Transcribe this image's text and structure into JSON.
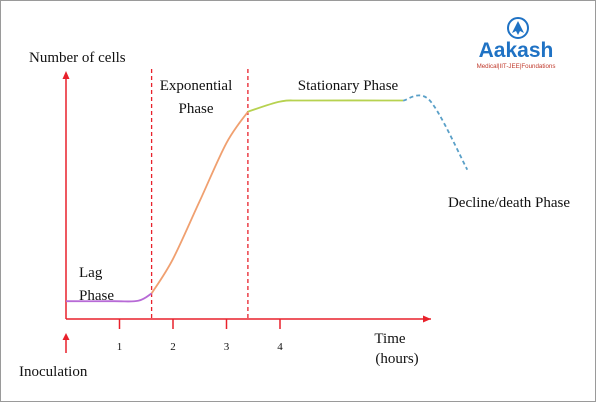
{
  "chart_data": {
    "type": "line",
    "ylabel": "Number of cells",
    "xlabel_lines": [
      "Time",
      "(hours)"
    ],
    "x_ticks": [
      "1",
      "2",
      "3",
      "4"
    ],
    "x_tick_values": [
      1,
      2,
      3,
      4
    ],
    "xlim": [
      0,
      6.8
    ],
    "ylim": [
      0,
      10
    ],
    "phase_boundaries": [
      1.6,
      3.4
    ],
    "inoculation_label": "Inoculation",
    "phases": [
      {
        "name": "Lag Phase",
        "lines": [
          "Lag",
          "Phase"
        ],
        "color": "#b76ad6",
        "dashed": false,
        "points": [
          [
            0,
            0.9
          ],
          [
            0.9,
            0.9
          ],
          [
            1.35,
            0.92
          ],
          [
            1.6,
            1.25
          ]
        ]
      },
      {
        "name": "Exponential Phase",
        "lines": [
          "Exponential",
          "Phase"
        ],
        "color": "#f0a070",
        "dashed": false,
        "points": [
          [
            1.6,
            1.25
          ],
          [
            2.0,
            2.8
          ],
          [
            2.5,
            5.4
          ],
          [
            3.0,
            8.0
          ],
          [
            3.4,
            9.4
          ]
        ]
      },
      {
        "name": "Stationary Phase",
        "lines": [
          "Stationary Phase"
        ],
        "color": "#b7d250",
        "dashed": false,
        "points": [
          [
            3.4,
            9.4
          ],
          [
            4.0,
            9.85
          ],
          [
            4.5,
            9.9
          ],
          [
            6.3,
            9.9
          ]
        ]
      },
      {
        "name": "Decline/death Phase",
        "lines": [
          "Decline/death Phase"
        ],
        "color": "#5aa0c8",
        "dashed": true,
        "points": [
          [
            6.3,
            9.9
          ],
          [
            6.8,
            9.9
          ],
          [
            7.5,
            6.8
          ]
        ]
      }
    ],
    "axis_color": "#e8212b",
    "boundary_color": "#e8212b"
  },
  "logo": {
    "name": "Aakash",
    "tagline": "Medical|IIT-JEE|Foundations",
    "color": "#1f72c4",
    "tag_color": "#c0392b"
  }
}
